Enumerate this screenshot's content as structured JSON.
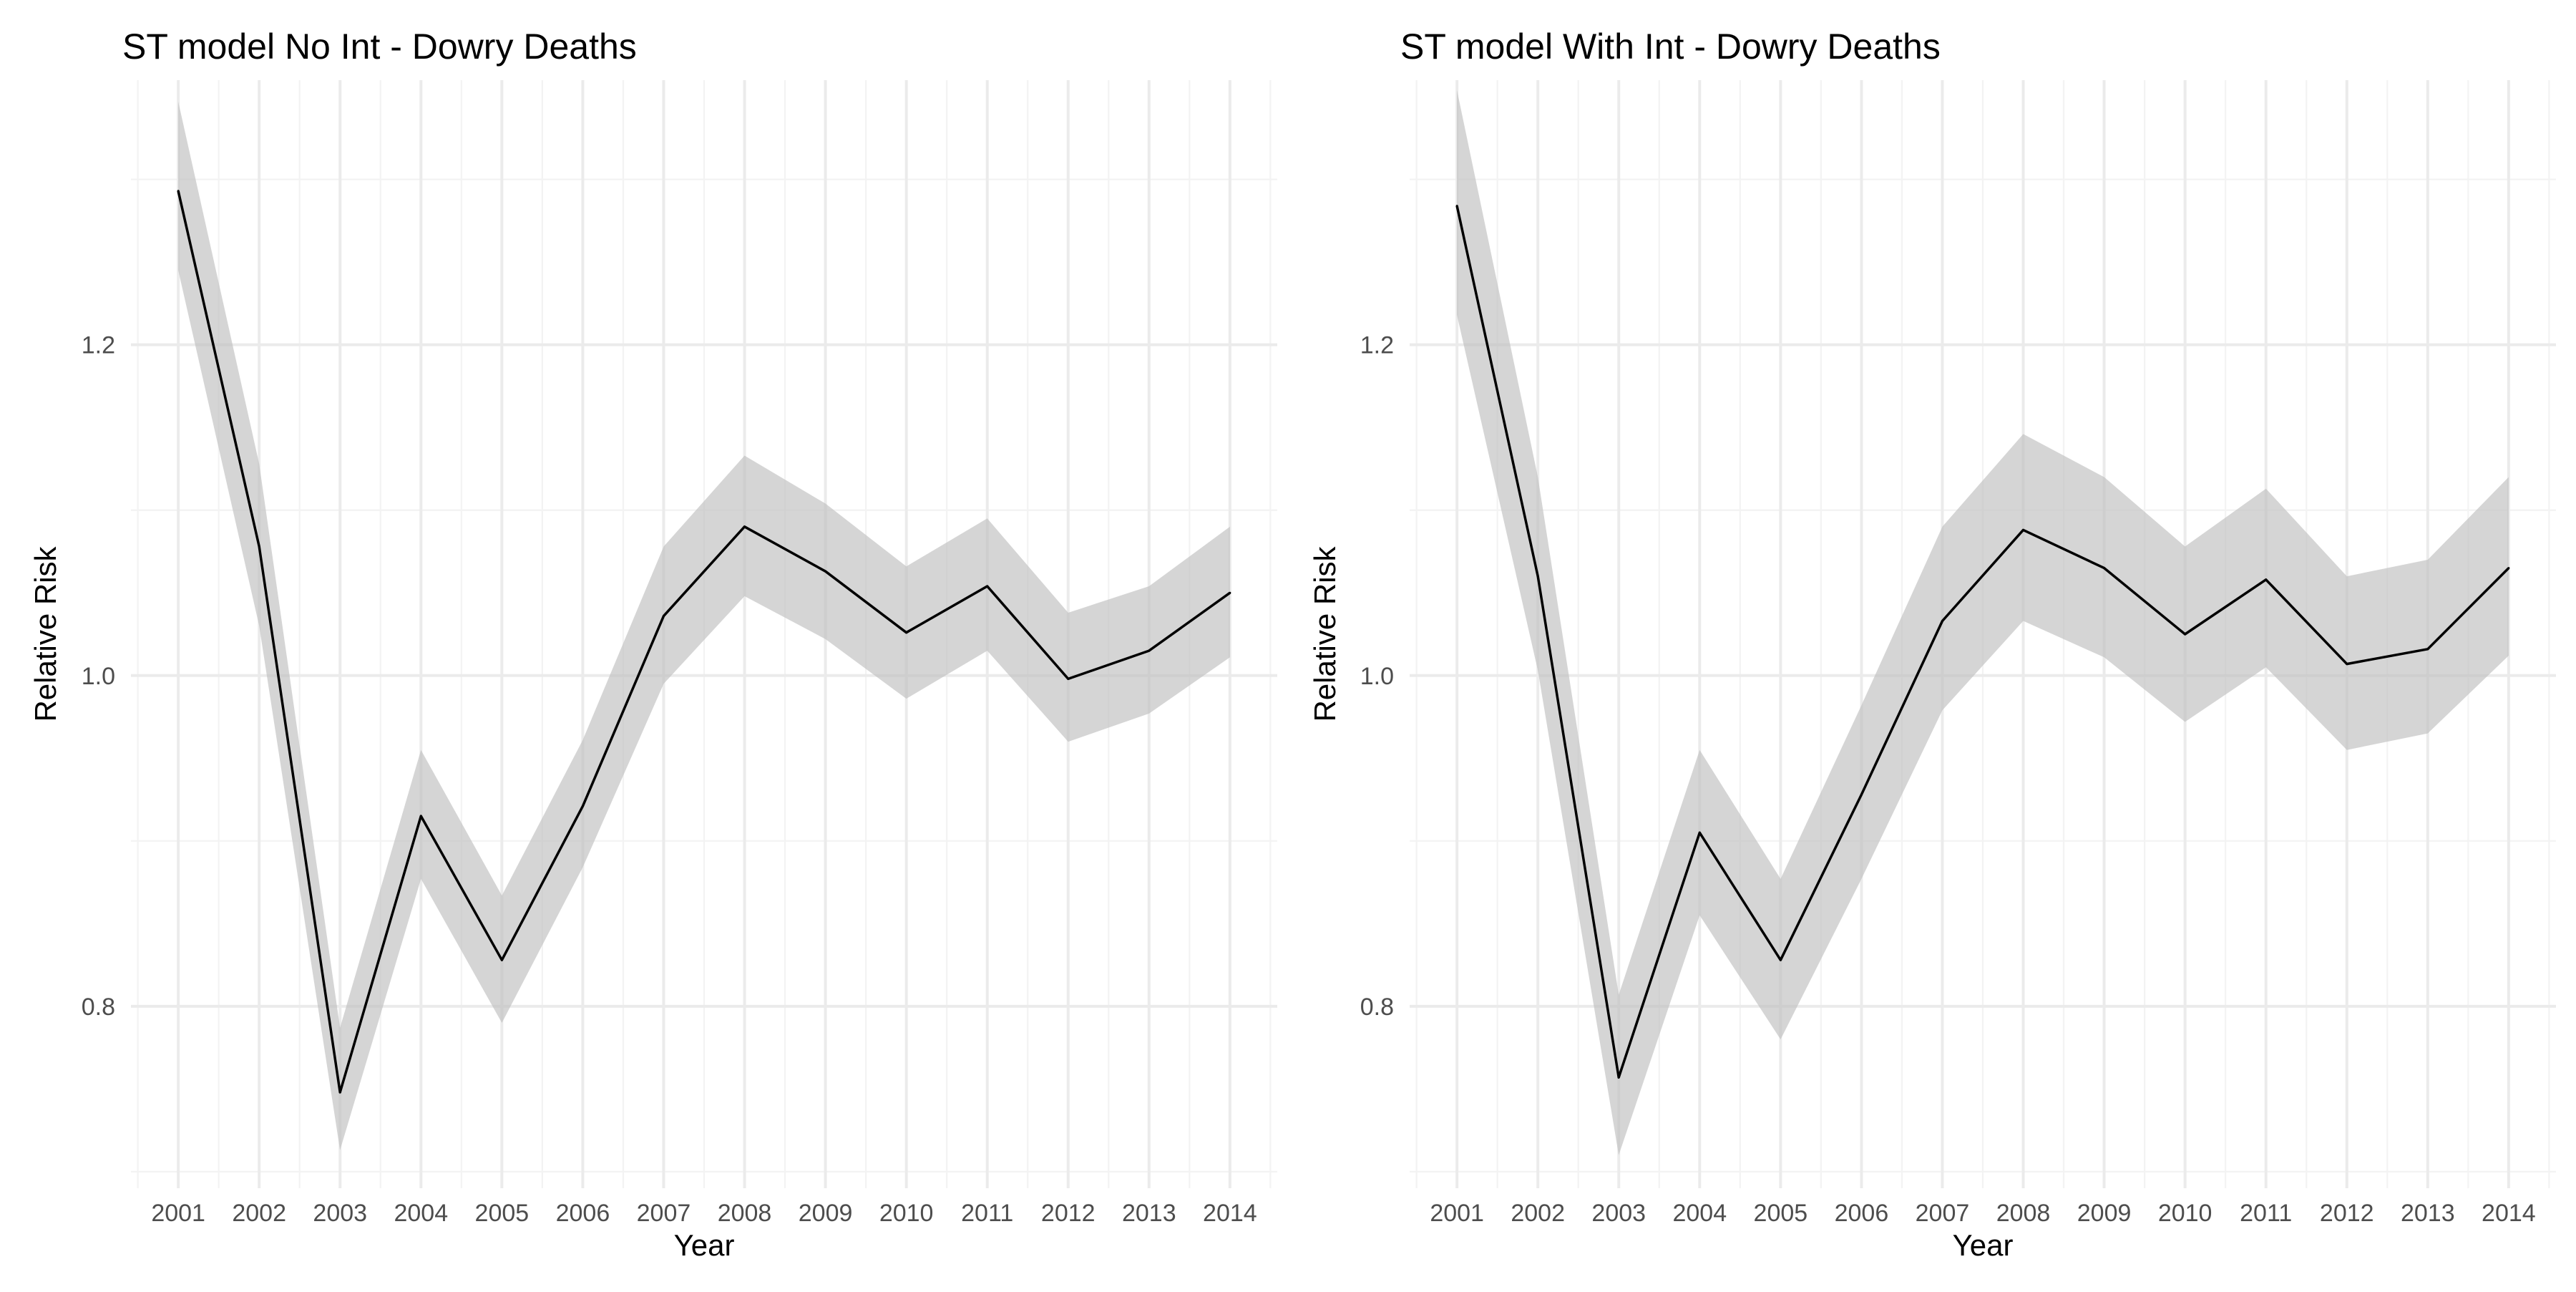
{
  "chart_data": [
    {
      "type": "line",
      "title": "ST model No Int - Dowry Deaths",
      "xlabel": "Year",
      "ylabel": "Relative Risk",
      "x": [
        2001,
        2002,
        2003,
        2004,
        2005,
        2006,
        2007,
        2008,
        2009,
        2010,
        2011,
        2012,
        2013,
        2014
      ],
      "y_ticks": [
        0.8,
        1.0,
        1.2
      ],
      "y_tick_labels": [
        "0.8",
        "1.0",
        "1.2"
      ],
      "ylim": [
        0.69,
        1.36
      ],
      "grid": true,
      "series": [
        {
          "values": [
            1.293,
            1.078,
            0.748,
            0.915,
            0.828,
            0.921,
            1.036,
            1.09,
            1.063,
            1.026,
            1.054,
            0.998,
            1.015,
            1.05
          ],
          "lower": [
            1.245,
            1.03,
            0.713,
            0.877,
            0.79,
            0.884,
            0.995,
            1.048,
            1.022,
            0.986,
            1.015,
            0.96,
            0.977,
            1.011
          ],
          "upper": [
            1.347,
            1.128,
            0.787,
            0.955,
            0.867,
            0.961,
            1.078,
            1.133,
            1.104,
            1.066,
            1.095,
            1.038,
            1.054,
            1.09
          ]
        }
      ]
    },
    {
      "type": "line",
      "title": "ST model With Int - Dowry Deaths",
      "xlabel": "Year",
      "ylabel": "Relative Risk",
      "x": [
        2001,
        2002,
        2003,
        2004,
        2005,
        2006,
        2007,
        2008,
        2009,
        2010,
        2011,
        2012,
        2013,
        2014
      ],
      "y_ticks": [
        0.8,
        1.0,
        1.2
      ],
      "y_tick_labels": [
        "0.8",
        "1.0",
        "1.2"
      ],
      "ylim": [
        0.69,
        1.36
      ],
      "grid": true,
      "series": [
        {
          "values": [
            1.284,
            1.06,
            0.757,
            0.905,
            0.828,
            0.928,
            1.033,
            1.088,
            1.065,
            1.025,
            1.058,
            1.007,
            1.016,
            1.065
          ],
          "lower": [
            1.218,
            1.003,
            0.71,
            0.855,
            0.78,
            0.877,
            0.979,
            1.033,
            1.011,
            0.972,
            1.005,
            0.955,
            0.965,
            1.012
          ],
          "upper": [
            1.354,
            1.12,
            0.807,
            0.955,
            0.877,
            0.982,
            1.09,
            1.146,
            1.12,
            1.078,
            1.113,
            1.06,
            1.07,
            1.12
          ]
        }
      ]
    }
  ]
}
